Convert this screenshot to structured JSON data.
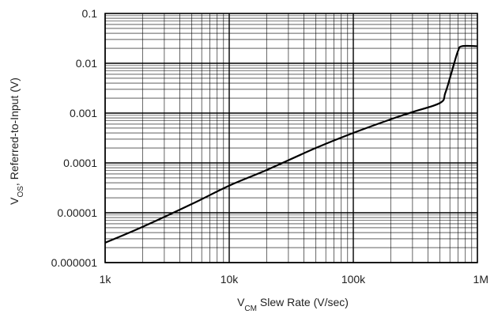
{
  "chart_data": {
    "type": "line",
    "x_scale": "log",
    "y_scale": "log",
    "xlim": [
      1000,
      1000000
    ],
    "ylim": [
      1e-06,
      0.1
    ],
    "x_ticks": [
      {
        "value": 1000,
        "label": "1k"
      },
      {
        "value": 10000,
        "label": "10k"
      },
      {
        "value": 100000,
        "label": "100k"
      },
      {
        "value": 1000000,
        "label": "1M"
      }
    ],
    "y_ticks": [
      {
        "value": 1e-06,
        "label": "0.000001"
      },
      {
        "value": 1e-05,
        "label": "0.00001"
      },
      {
        "value": 0.0001,
        "label": "0.0001"
      },
      {
        "value": 0.001,
        "label": "0.001"
      },
      {
        "value": 0.01,
        "label": "0.01"
      },
      {
        "value": 0.1,
        "label": "0.1"
      }
    ],
    "xlabel": {
      "main": "V",
      "sub": "CM",
      "rest": " Slew Rate (V/sec)"
    },
    "ylabel": {
      "main": "V",
      "sub": "OS",
      "rest": ", Referred-to-Input (V)"
    },
    "grid": true,
    "series": [
      {
        "x": [
          1000,
          2000,
          5000,
          10000,
          20000,
          50000,
          100000,
          200000,
          300000,
          500000,
          550000,
          600000,
          650000,
          700000,
          750000,
          1000000
        ],
        "y": [
          2.5e-06,
          5.2e-06,
          1.5e-05,
          3.5e-05,
          7.2e-05,
          0.0002,
          0.0004,
          0.00075,
          0.00105,
          0.0016,
          0.0025,
          0.005,
          0.01,
          0.018,
          0.022,
          0.022
        ]
      }
    ],
    "line_color": "#000000"
  }
}
